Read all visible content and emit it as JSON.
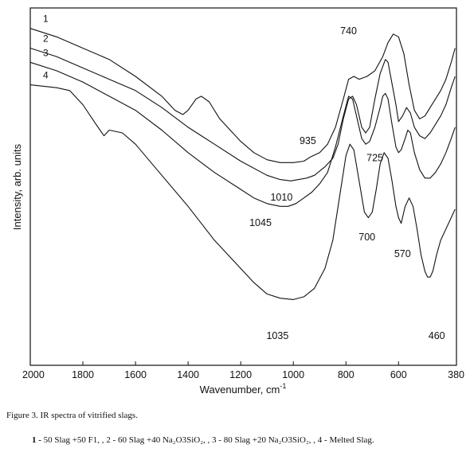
{
  "caption": "Figure 3. IR spectra of vitrified slags.",
  "legend_text": {
    "item1_num": "1 -",
    "item1_text": " 50 Slag +50 F1, ,",
    "item2_text": " 2 -  60 Slag +40 Na₂O3SiO₂, ,",
    "item3_text": " 3 - 80 Slag +20 Na₂O3SiO₂, ,",
    "item4_text": " 4 - Melted Slag."
  },
  "chart_data": {
    "type": "line",
    "title": "",
    "xlabel": "Wavenumber, cm",
    "xlabel_superscript": "-1",
    "ylabel": "Intensity, arb. units",
    "xlim": [
      2000,
      380
    ],
    "x_reversed": true,
    "ylim": [
      0,
      100
    ],
    "y_ticks_shown": false,
    "x_ticks": [
      2000,
      1800,
      1600,
      1400,
      1200,
      1000,
      800,
      600,
      380
    ],
    "x_tick_labels": [
      "2000",
      "1800",
      "1600",
      "1400",
      "1200",
      "1000",
      "800",
      "600",
      "380"
    ],
    "grid": false,
    "series": [
      {
        "name": "1",
        "points": [
          [
            2000,
            97
          ],
          [
            1900,
            94
          ],
          [
            1800,
            90
          ],
          [
            1700,
            86
          ],
          [
            1600,
            80
          ],
          [
            1500,
            73
          ],
          [
            1450,
            68
          ],
          [
            1420,
            66.5
          ],
          [
            1400,
            68
          ],
          [
            1370,
            72
          ],
          [
            1350,
            73
          ],
          [
            1320,
            71
          ],
          [
            1280,
            65
          ],
          [
            1200,
            57
          ],
          [
            1150,
            53
          ],
          [
            1100,
            50.5
          ],
          [
            1050,
            49.5
          ],
          [
            1000,
            49.5
          ],
          [
            960,
            50
          ],
          [
            935,
            51.5
          ],
          [
            900,
            53
          ],
          [
            870,
            56
          ],
          [
            840,
            62
          ],
          [
            810,
            72
          ],
          [
            790,
            79
          ],
          [
            770,
            80
          ],
          [
            750,
            79
          ],
          [
            720,
            80
          ],
          [
            690,
            82
          ],
          [
            660,
            87
          ],
          [
            640,
            92
          ],
          [
            620,
            95
          ],
          [
            600,
            94
          ],
          [
            580,
            88
          ],
          [
            560,
            77
          ],
          [
            540,
            68
          ],
          [
            520,
            65
          ],
          [
            500,
            66
          ],
          [
            480,
            69
          ],
          [
            460,
            72
          ],
          [
            440,
            75
          ],
          [
            420,
            79
          ],
          [
            400,
            85
          ],
          [
            385,
            90
          ]
        ]
      },
      {
        "name": "2",
        "points": [
          [
            2000,
            90
          ],
          [
            1900,
            87
          ],
          [
            1800,
            83
          ],
          [
            1700,
            79
          ],
          [
            1600,
            75
          ],
          [
            1500,
            69
          ],
          [
            1400,
            62
          ],
          [
            1300,
            56
          ],
          [
            1200,
            50
          ],
          [
            1100,
            45
          ],
          [
            1050,
            43.5
          ],
          [
            1010,
            43
          ],
          [
            980,
            43.5
          ],
          [
            950,
            44
          ],
          [
            920,
            45
          ],
          [
            880,
            48
          ],
          [
            850,
            51
          ],
          [
            830,
            56
          ],
          [
            810,
            65
          ],
          [
            790,
            72
          ],
          [
            775,
            73
          ],
          [
            760,
            70
          ],
          [
            740,
            62
          ],
          [
            725,
            60
          ],
          [
            710,
            62
          ],
          [
            690,
            72
          ],
          [
            670,
            81
          ],
          [
            650,
            86
          ],
          [
            640,
            85
          ],
          [
            630,
            80
          ],
          [
            610,
            70
          ],
          [
            600,
            64
          ],
          [
            585,
            66
          ],
          [
            570,
            69
          ],
          [
            555,
            67
          ],
          [
            540,
            62
          ],
          [
            520,
            59
          ],
          [
            500,
            58
          ],
          [
            480,
            60
          ],
          [
            460,
            63
          ],
          [
            440,
            66
          ],
          [
            420,
            70
          ],
          [
            400,
            76
          ],
          [
            385,
            80
          ]
        ]
      },
      {
        "name": "3",
        "points": [
          [
            2000,
            85
          ],
          [
            1900,
            82
          ],
          [
            1800,
            78
          ],
          [
            1700,
            73
          ],
          [
            1600,
            68
          ],
          [
            1500,
            61
          ],
          [
            1400,
            53
          ],
          [
            1300,
            46
          ],
          [
            1200,
            40
          ],
          [
            1150,
            37
          ],
          [
            1100,
            35
          ],
          [
            1050,
            34
          ],
          [
            1020,
            34
          ],
          [
            990,
            35
          ],
          [
            960,
            37
          ],
          [
            930,
            39
          ],
          [
            900,
            42
          ],
          [
            870,
            46
          ],
          [
            840,
            55
          ],
          [
            810,
            66
          ],
          [
            790,
            73
          ],
          [
            775,
            72
          ],
          [
            760,
            66
          ],
          [
            740,
            58
          ],
          [
            725,
            56
          ],
          [
            710,
            57
          ],
          [
            690,
            62
          ],
          [
            670,
            69
          ],
          [
            660,
            73
          ],
          [
            650,
            74
          ],
          [
            640,
            72
          ],
          [
            625,
            63
          ],
          [
            610,
            55
          ],
          [
            600,
            53
          ],
          [
            590,
            54
          ],
          [
            575,
            58
          ],
          [
            565,
            61
          ],
          [
            555,
            60
          ],
          [
            540,
            53
          ],
          [
            520,
            47
          ],
          [
            500,
            44
          ],
          [
            480,
            44
          ],
          [
            460,
            46
          ],
          [
            440,
            49
          ],
          [
            420,
            53
          ],
          [
            400,
            58
          ],
          [
            385,
            62
          ]
        ]
      },
      {
        "name": "4",
        "points": [
          [
            2000,
            77
          ],
          [
            1900,
            76
          ],
          [
            1850,
            75
          ],
          [
            1800,
            70
          ],
          [
            1750,
            63
          ],
          [
            1720,
            59
          ],
          [
            1700,
            61
          ],
          [
            1650,
            60
          ],
          [
            1600,
            56
          ],
          [
            1500,
            45
          ],
          [
            1400,
            34
          ],
          [
            1300,
            22
          ],
          [
            1200,
            12
          ],
          [
            1150,
            7
          ],
          [
            1100,
            3
          ],
          [
            1050,
            1.5
          ],
          [
            1000,
            1
          ],
          [
            960,
            2
          ],
          [
            920,
            5
          ],
          [
            880,
            12
          ],
          [
            850,
            22
          ],
          [
            820,
            40
          ],
          [
            800,
            52
          ],
          [
            785,
            56
          ],
          [
            770,
            54
          ],
          [
            750,
            43
          ],
          [
            730,
            32
          ],
          [
            715,
            30
          ],
          [
            700,
            32
          ],
          [
            685,
            40
          ],
          [
            670,
            49
          ],
          [
            655,
            53
          ],
          [
            640,
            51
          ],
          [
            625,
            43
          ],
          [
            610,
            34
          ],
          [
            600,
            30
          ],
          [
            590,
            28
          ],
          [
            575,
            34
          ],
          [
            560,
            37
          ],
          [
            545,
            34
          ],
          [
            530,
            26
          ],
          [
            515,
            17
          ],
          [
            500,
            11
          ],
          [
            490,
            9
          ],
          [
            480,
            9
          ],
          [
            470,
            11
          ],
          [
            455,
            17
          ],
          [
            440,
            22
          ],
          [
            420,
            26
          ],
          [
            400,
            30
          ],
          [
            385,
            33
          ]
        ]
      }
    ],
    "series_label_positions": [
      "top-left",
      "top-left",
      "top-left",
      "top-left"
    ],
    "annotations": [
      {
        "text": "740",
        "x": 790,
        "y": 95
      },
      {
        "text": "935",
        "x": 945,
        "y": 56
      },
      {
        "text": "1010",
        "x": 1045,
        "y": 36
      },
      {
        "text": "725",
        "x": 690,
        "y": 50
      },
      {
        "text": "1045",
        "x": 1125,
        "y": 27
      },
      {
        "text": "700",
        "x": 720,
        "y": 22
      },
      {
        "text": "570",
        "x": 585,
        "y": 16
      },
      {
        "text": "1035",
        "x": 1060,
        "y": -13
      },
      {
        "text": "460",
        "x": 455,
        "y": -13
      }
    ]
  }
}
